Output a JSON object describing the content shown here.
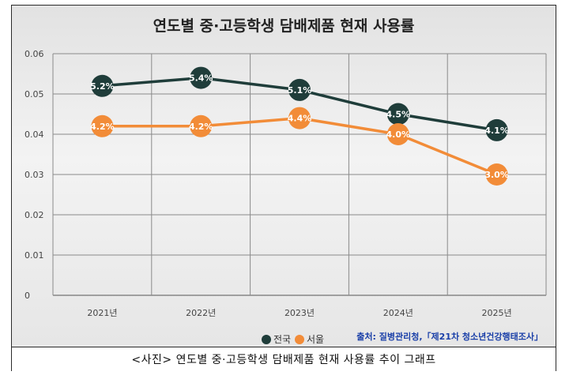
{
  "caption": "<사진> 연도별 중·고등학생 담배제품 현재 사용률 추이 그래프",
  "source_note": "출처: 질병관리청,「제21차 청소년건강행태조사」",
  "colors": {
    "national": "#1f3d3a",
    "seoul": "#f28c38",
    "source_text": "#1a3fa8"
  },
  "chart_data": {
    "type": "line",
    "title": "연도별 중·고등학생 담배제품 현재 사용률",
    "xlabel": "",
    "ylabel": "",
    "categories": [
      "2021년",
      "2022년",
      "2023년",
      "2024년",
      "2025년"
    ],
    "ylim": [
      0,
      0.06
    ],
    "yticks": [
      "0",
      "0.01",
      "0.02",
      "0.03",
      "0.04",
      "0.05",
      "0.06"
    ],
    "grid": true,
    "legend": "bottom",
    "series": [
      {
        "name": "전국",
        "color": "#1f3d3a",
        "values": [
          0.052,
          0.054,
          0.051,
          0.045,
          0.041
        ],
        "labels": [
          "5.2%",
          "5.4%",
          "5.1%",
          "4.5%",
          "4.1%"
        ]
      },
      {
        "name": "서울",
        "color": "#f28c38",
        "values": [
          0.042,
          0.042,
          0.044,
          0.04,
          0.03
        ],
        "labels": [
          "4.2%",
          "4.2%",
          "4.4%",
          "4.0%",
          "3.0%"
        ]
      }
    ]
  }
}
